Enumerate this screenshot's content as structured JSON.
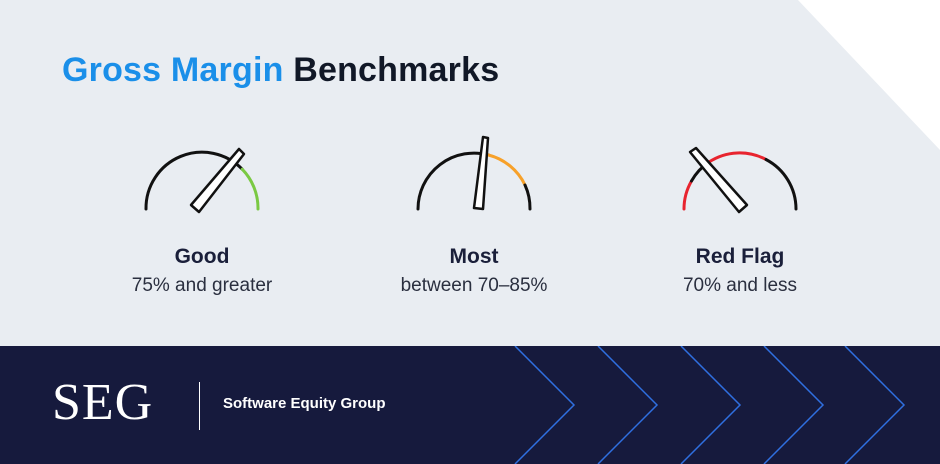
{
  "title": {
    "accent": "Gross Margin",
    "rest": "Benchmarks"
  },
  "gauges": [
    {
      "label": "Good",
      "description": "75% and greater",
      "highlight_color": "#7ac943"
    },
    {
      "label": "Most",
      "description": "between 70–85%",
      "highlight_color": "#f7a12a"
    },
    {
      "label": "Red Flag",
      "description": "70% and less",
      "highlight_color": "#e8242f"
    }
  ],
  "footer": {
    "logo": "SEG",
    "company": "Software Equity Group",
    "background": "#161a3d",
    "chevron_color": "#2f6fe0"
  },
  "colors": {
    "accent": "#1a8fe9",
    "background": "#e9edf2",
    "ink": "#111827"
  }
}
